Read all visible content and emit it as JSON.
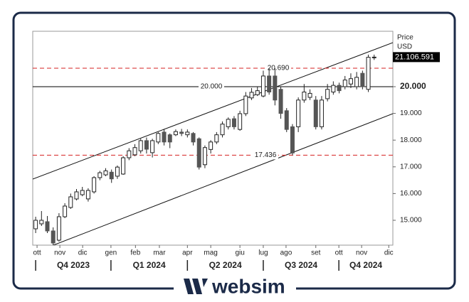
{
  "chart_data": {
    "type": "candlestick",
    "axis_title": "Price",
    "axis_unit": "USD",
    "x": [
      0,
      1,
      2,
      3,
      4,
      5,
      6,
      7,
      8,
      9,
      10,
      11,
      12,
      13,
      14,
      15,
      16,
      17,
      18,
      19,
      20,
      21,
      22,
      23,
      24,
      25,
      26,
      27,
      28,
      29,
      30,
      31,
      32,
      33,
      34,
      35,
      36,
      37,
      38,
      39,
      40,
      41,
      42,
      43,
      44,
      45,
      46,
      47,
      48,
      49,
      50,
      51,
      52,
      53,
      54,
      55,
      56,
      57,
      58
    ],
    "open": [
      14681,
      14867,
      14947,
      14601,
      14255,
      15133,
      15479,
      15798,
      15957,
      15800,
      16064,
      16596,
      16700,
      16800,
      16650,
      16730,
      17340,
      17450,
      17600,
      17980,
      17530,
      17930,
      18300,
      18200,
      18200,
      18300,
      18200,
      18250,
      18050,
      17080,
      17650,
      17930,
      18200,
      18500,
      18800,
      18400,
      18990,
      19580,
      19700,
      19650,
      20400,
      20400,
      19900,
      19100,
      18500,
      18500,
      19500,
      19600,
      19500,
      18500,
      19550,
      19800,
      20050,
      20000,
      20100,
      20000,
      20500,
      19900,
      21080
    ],
    "high": [
      15133,
      15346,
      15160,
      14734,
      15266,
      15638,
      16000,
      16170,
      16250,
      16200,
      16650,
      16850,
      16950,
      16900,
      17050,
      17400,
      17700,
      17850,
      18050,
      18100,
      18050,
      18300,
      18400,
      18250,
      18400,
      18420,
      18400,
      18300,
      18100,
      17800,
      18000,
      18300,
      18700,
      18850,
      18900,
      19100,
      19800,
      19950,
      20000,
      20600,
      20690,
      20690,
      20000,
      19200,
      18600,
      19600,
      20100,
      19900,
      19650,
      19650,
      20100,
      20200,
      20150,
      20400,
      20500,
      20550,
      20600,
      21200,
      21200
    ],
    "low": [
      14521,
      14787,
      14521,
      14069,
      14202,
      15080,
      15426,
      15745,
      15900,
      15700,
      16000,
      16500,
      16650,
      16400,
      16550,
      16700,
      17250,
      17400,
      17500,
      17500,
      17350,
      17850,
      17800,
      17700,
      18150,
      18150,
      18100,
      17800,
      16900,
      16950,
      17500,
      17850,
      18100,
      18400,
      18400,
      18350,
      18900,
      19500,
      19650,
      19600,
      19700,
      19300,
      18800,
      18300,
      17436,
      18300,
      19400,
      19500,
      18400,
      18400,
      19450,
      19700,
      19750,
      19900,
      19950,
      19900,
      19900,
      19800,
      21000
    ],
    "close": [
      15000,
      15000,
      14601,
      14149,
      15133,
      15532,
      15878,
      16064,
      16117,
      16117,
      16596,
      16780,
      16850,
      16550,
      16990,
      17340,
      17600,
      17720,
      17980,
      17660,
      17980,
      18250,
      17930,
      17930,
      18320,
      18250,
      18300,
      17930,
      16990,
      17720,
      17930,
      18200,
      18600,
      18780,
      18500,
      18990,
      19650,
      19790,
      19850,
      20400,
      19800,
      19500,
      19000,
      18400,
      17520,
      19500,
      19800,
      19750,
      18500,
      19500,
      19900,
      20050,
      19850,
      20250,
      20300,
      20350,
      20000,
      21100,
      21106.591
    ],
    "up_color": "#ffffff",
    "down_color": "#555555",
    "outline_color": "#222222",
    "last_price": 21106.591,
    "last_price_label": "21.106.591",
    "ylim": [
      14069,
      22074
    ],
    "yticks": [
      {
        "value": 15000,
        "label": "15.000"
      },
      {
        "value": 16000,
        "label": "16.000"
      },
      {
        "value": 17000,
        "label": "17.000"
      },
      {
        "value": 18000,
        "label": "18.000"
      },
      {
        "value": 19000,
        "label": "19.000"
      },
      {
        "value": 20000,
        "label": "20.000"
      },
      {
        "value": 21000,
        "label": "21.000"
      }
    ],
    "xlim": [
      -0.5,
      61.2
    ],
    "xticks": [
      {
        "value": 0.24,
        "label": "ott"
      },
      {
        "value": 4.15,
        "label": "nov"
      },
      {
        "value": 8.05,
        "label": "dic"
      },
      {
        "value": 12.9,
        "label": "gen"
      },
      {
        "value": 17.1,
        "label": "feb"
      },
      {
        "value": 21.2,
        "label": "mar"
      },
      {
        "value": 26,
        "label": "apr"
      },
      {
        "value": 30,
        "label": "mag"
      },
      {
        "value": 35,
        "label": "giu"
      },
      {
        "value": 39,
        "label": "lug"
      },
      {
        "value": 42.9,
        "label": "ago"
      },
      {
        "value": 48,
        "label": "set"
      },
      {
        "value": 51.95,
        "label": "ott"
      },
      {
        "value": 55.85,
        "label": "nov"
      },
      {
        "value": 60.5,
        "label": "dic"
      }
    ],
    "quarters": [
      {
        "label": "Q4 2023",
        "from": 0,
        "to": 12.9
      },
      {
        "label": "Q1 2024",
        "from": 12.9,
        "to": 26
      },
      {
        "label": "Q2 2024",
        "from": 26,
        "to": 39
      },
      {
        "label": "Q3 2024",
        "from": 39,
        "to": 51.95
      },
      {
        "label": "Q4 2024",
        "from": 51.95,
        "to": 61.2
      }
    ],
    "levels": [
      {
        "value": 20000,
        "label": "20.000",
        "color": "#000000",
        "style": "solid"
      },
      {
        "value": 20690,
        "label": "20.690",
        "color": "#d62020",
        "style": "dashed"
      },
      {
        "value": 17436,
        "label": "17.436",
        "color": "#d62020",
        "style": "dashed"
      }
    ],
    "channel": [
      {
        "x": [
          -0.5,
          61.2
        ],
        "y": [
          16543,
          21649
        ]
      },
      {
        "x": [
          3.05,
          61.2
        ],
        "y": [
          14069,
          18989
        ]
      }
    ]
  },
  "brand": "websim"
}
